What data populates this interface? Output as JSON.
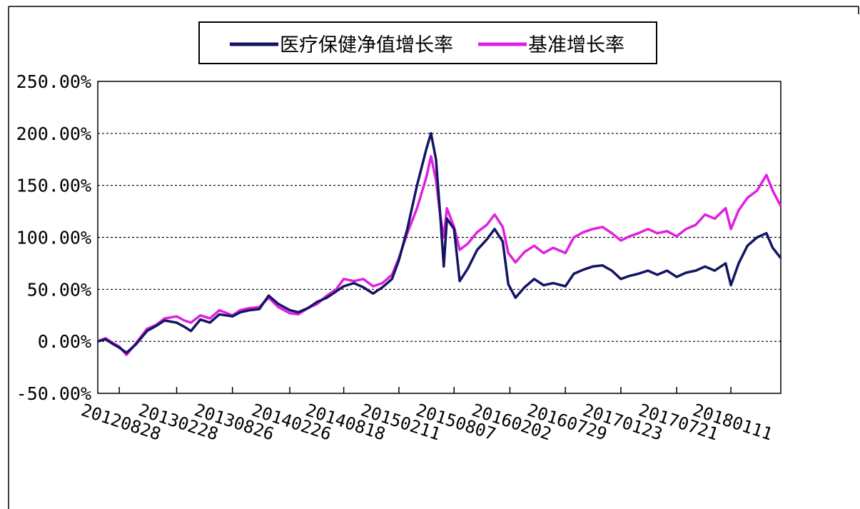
{
  "chart_data": {
    "type": "line",
    "title": "",
    "xlabel": "",
    "ylabel": "",
    "ylim": [
      -50,
      250
    ],
    "y_ticks": [
      -50,
      0,
      50,
      100,
      150,
      200,
      250
    ],
    "y_tick_labels": [
      "-50.00%",
      "0.00%",
      "50.00%",
      "100.00%",
      "150.00%",
      "200.00%",
      "250.00%"
    ],
    "x_tick_labels": [
      "20120828",
      "20130228",
      "20130826",
      "20140226",
      "20140818",
      "20150211",
      "20150807",
      "20160202",
      "20160729",
      "20170123",
      "20170721",
      "20180111"
    ],
    "grid": "horizontal dotted",
    "legend_position": "top-center",
    "series": [
      {
        "name": "医疗保健净值增长率",
        "color": "#141464",
        "values": [
          {
            "x": "2012-06-20",
            "y": 0
          },
          {
            "x": "2012-07-15",
            "y": 2
          },
          {
            "x": "2012-08-10",
            "y": -3
          },
          {
            "x": "2012-08-28",
            "y": -6
          },
          {
            "x": "2012-09-20",
            "y": -11
          },
          {
            "x": "2012-10-20",
            "y": -3
          },
          {
            "x": "2012-11-25",
            "y": 10
          },
          {
            "x": "2012-12-25",
            "y": 15
          },
          {
            "x": "2013-01-20",
            "y": 20
          },
          {
            "x": "2013-02-28",
            "y": 18
          },
          {
            "x": "2013-03-25",
            "y": 14
          },
          {
            "x": "2013-04-15",
            "y": 10
          },
          {
            "x": "2013-05-15",
            "y": 21
          },
          {
            "x": "2013-06-15",
            "y": 18
          },
          {
            "x": "2013-07-15",
            "y": 26
          },
          {
            "x": "2013-08-26",
            "y": 24
          },
          {
            "x": "2013-09-20",
            "y": 28
          },
          {
            "x": "2013-10-20",
            "y": 30
          },
          {
            "x": "2013-11-20",
            "y": 31
          },
          {
            "x": "2013-12-20",
            "y": 44
          },
          {
            "x": "2014-01-20",
            "y": 36
          },
          {
            "x": "2014-02-26",
            "y": 30
          },
          {
            "x": "2014-03-25",
            "y": 28
          },
          {
            "x": "2014-04-25",
            "y": 32
          },
          {
            "x": "2014-05-25",
            "y": 38
          },
          {
            "x": "2014-06-25",
            "y": 42
          },
          {
            "x": "2014-07-25",
            "y": 48
          },
          {
            "x": "2014-08-18",
            "y": 53
          },
          {
            "x": "2014-09-20",
            "y": 56
          },
          {
            "x": "2014-10-20",
            "y": 52
          },
          {
            "x": "2014-11-20",
            "y": 46
          },
          {
            "x": "2014-12-20",
            "y": 52
          },
          {
            "x": "2015-01-20",
            "y": 60
          },
          {
            "x": "2015-02-11",
            "y": 78
          },
          {
            "x": "2015-03-10",
            "y": 108
          },
          {
            "x": "2015-04-10",
            "y": 150
          },
          {
            "x": "2015-05-10",
            "y": 185
          },
          {
            "x": "2015-05-25",
            "y": 200
          },
          {
            "x": "2015-06-10",
            "y": 175
          },
          {
            "x": "2015-06-25",
            "y": 115
          },
          {
            "x": "2015-07-05",
            "y": 72
          },
          {
            "x": "2015-07-15",
            "y": 118
          },
          {
            "x": "2015-08-07",
            "y": 108
          },
          {
            "x": "2015-08-25",
            "y": 58
          },
          {
            "x": "2015-09-20",
            "y": 70
          },
          {
            "x": "2015-10-20",
            "y": 88
          },
          {
            "x": "2015-11-20",
            "y": 98
          },
          {
            "x": "2015-12-15",
            "y": 108
          },
          {
            "x": "2016-01-10",
            "y": 96
          },
          {
            "x": "2016-01-28",
            "y": 55
          },
          {
            "x": "2016-02-20",
            "y": 42
          },
          {
            "x": "2016-03-20",
            "y": 52
          },
          {
            "x": "2016-04-20",
            "y": 60
          },
          {
            "x": "2016-05-20",
            "y": 54
          },
          {
            "x": "2016-06-20",
            "y": 56
          },
          {
            "x": "2016-07-29",
            "y": 53
          },
          {
            "x": "2016-08-25",
            "y": 65
          },
          {
            "x": "2016-09-25",
            "y": 69
          },
          {
            "x": "2016-10-25",
            "y": 72
          },
          {
            "x": "2016-11-25",
            "y": 73
          },
          {
            "x": "2016-12-25",
            "y": 68
          },
          {
            "x": "2017-01-23",
            "y": 60
          },
          {
            "x": "2017-02-20",
            "y": 63
          },
          {
            "x": "2017-03-20",
            "y": 65
          },
          {
            "x": "2017-04-20",
            "y": 68
          },
          {
            "x": "2017-05-20",
            "y": 64
          },
          {
            "x": "2017-06-20",
            "y": 68
          },
          {
            "x": "2017-07-21",
            "y": 62
          },
          {
            "x": "2017-08-20",
            "y": 66
          },
          {
            "x": "2017-09-20",
            "y": 68
          },
          {
            "x": "2017-10-20",
            "y": 72
          },
          {
            "x": "2017-11-20",
            "y": 68
          },
          {
            "x": "2017-12-25",
            "y": 75
          },
          {
            "x": "2018-01-11",
            "y": 54
          },
          {
            "x": "2018-02-05",
            "y": 75
          },
          {
            "x": "2018-03-05",
            "y": 92
          },
          {
            "x": "2018-04-05",
            "y": 100
          },
          {
            "x": "2018-05-05",
            "y": 104
          },
          {
            "x": "2018-05-25",
            "y": 90
          },
          {
            "x": "2018-06-20",
            "y": 80
          }
        ]
      },
      {
        "name": "基准增长率",
        "color": "#e020e0",
        "values": [
          {
            "x": "2012-06-20",
            "y": 0
          },
          {
            "x": "2012-07-15",
            "y": 3
          },
          {
            "x": "2012-08-10",
            "y": -2
          },
          {
            "x": "2012-08-28",
            "y": -5
          },
          {
            "x": "2012-09-20",
            "y": -13
          },
          {
            "x": "2012-10-20",
            "y": -2
          },
          {
            "x": "2012-11-25",
            "y": 12
          },
          {
            "x": "2012-12-25",
            "y": 16
          },
          {
            "x": "2013-01-20",
            "y": 22
          },
          {
            "x": "2013-02-28",
            "y": 24
          },
          {
            "x": "2013-03-25",
            "y": 20
          },
          {
            "x": "2013-04-15",
            "y": 18
          },
          {
            "x": "2013-05-15",
            "y": 25
          },
          {
            "x": "2013-06-15",
            "y": 22
          },
          {
            "x": "2013-07-15",
            "y": 30
          },
          {
            "x": "2013-08-26",
            "y": 25
          },
          {
            "x": "2013-09-20",
            "y": 30
          },
          {
            "x": "2013-10-20",
            "y": 32
          },
          {
            "x": "2013-11-20",
            "y": 33
          },
          {
            "x": "2013-12-20",
            "y": 42
          },
          {
            "x": "2014-01-20",
            "y": 33
          },
          {
            "x": "2014-02-26",
            "y": 27
          },
          {
            "x": "2014-03-25",
            "y": 26
          },
          {
            "x": "2014-04-25",
            "y": 32
          },
          {
            "x": "2014-05-25",
            "y": 36
          },
          {
            "x": "2014-06-25",
            "y": 44
          },
          {
            "x": "2014-07-25",
            "y": 50
          },
          {
            "x": "2014-08-18",
            "y": 60
          },
          {
            "x": "2014-09-20",
            "y": 58
          },
          {
            "x": "2014-10-20",
            "y": 60
          },
          {
            "x": "2014-11-20",
            "y": 53
          },
          {
            "x": "2014-12-20",
            "y": 56
          },
          {
            "x": "2015-01-20",
            "y": 64
          },
          {
            "x": "2015-02-11",
            "y": 80
          },
          {
            "x": "2015-03-10",
            "y": 104
          },
          {
            "x": "2015-04-10",
            "y": 128
          },
          {
            "x": "2015-05-10",
            "y": 158
          },
          {
            "x": "2015-05-25",
            "y": 178
          },
          {
            "x": "2015-06-10",
            "y": 155
          },
          {
            "x": "2015-06-25",
            "y": 118
          },
          {
            "x": "2015-07-05",
            "y": 100
          },
          {
            "x": "2015-07-15",
            "y": 128
          },
          {
            "x": "2015-08-07",
            "y": 110
          },
          {
            "x": "2015-08-25",
            "y": 88
          },
          {
            "x": "2015-09-20",
            "y": 94
          },
          {
            "x": "2015-10-20",
            "y": 105
          },
          {
            "x": "2015-11-20",
            "y": 112
          },
          {
            "x": "2015-12-15",
            "y": 122
          },
          {
            "x": "2016-01-10",
            "y": 110
          },
          {
            "x": "2016-01-28",
            "y": 85
          },
          {
            "x": "2016-02-20",
            "y": 76
          },
          {
            "x": "2016-03-20",
            "y": 86
          },
          {
            "x": "2016-04-20",
            "y": 92
          },
          {
            "x": "2016-05-20",
            "y": 85
          },
          {
            "x": "2016-06-20",
            "y": 90
          },
          {
            "x": "2016-07-29",
            "y": 85
          },
          {
            "x": "2016-08-25",
            "y": 100
          },
          {
            "x": "2016-09-25",
            "y": 105
          },
          {
            "x": "2016-10-25",
            "y": 108
          },
          {
            "x": "2016-11-25",
            "y": 110
          },
          {
            "x": "2016-12-25",
            "y": 104
          },
          {
            "x": "2017-01-23",
            "y": 97
          },
          {
            "x": "2017-02-20",
            "y": 101
          },
          {
            "x": "2017-03-20",
            "y": 104
          },
          {
            "x": "2017-04-20",
            "y": 108
          },
          {
            "x": "2017-05-20",
            "y": 104
          },
          {
            "x": "2017-06-20",
            "y": 106
          },
          {
            "x": "2017-07-21",
            "y": 101
          },
          {
            "x": "2017-08-20",
            "y": 108
          },
          {
            "x": "2017-09-20",
            "y": 112
          },
          {
            "x": "2017-10-20",
            "y": 122
          },
          {
            "x": "2017-11-20",
            "y": 118
          },
          {
            "x": "2017-12-25",
            "y": 128
          },
          {
            "x": "2018-01-11",
            "y": 108
          },
          {
            "x": "2018-02-05",
            "y": 126
          },
          {
            "x": "2018-03-05",
            "y": 138
          },
          {
            "x": "2018-04-05",
            "y": 145
          },
          {
            "x": "2018-05-05",
            "y": 160
          },
          {
            "x": "2018-05-25",
            "y": 145
          },
          {
            "x": "2018-06-20",
            "y": 130
          }
        ]
      }
    ]
  }
}
